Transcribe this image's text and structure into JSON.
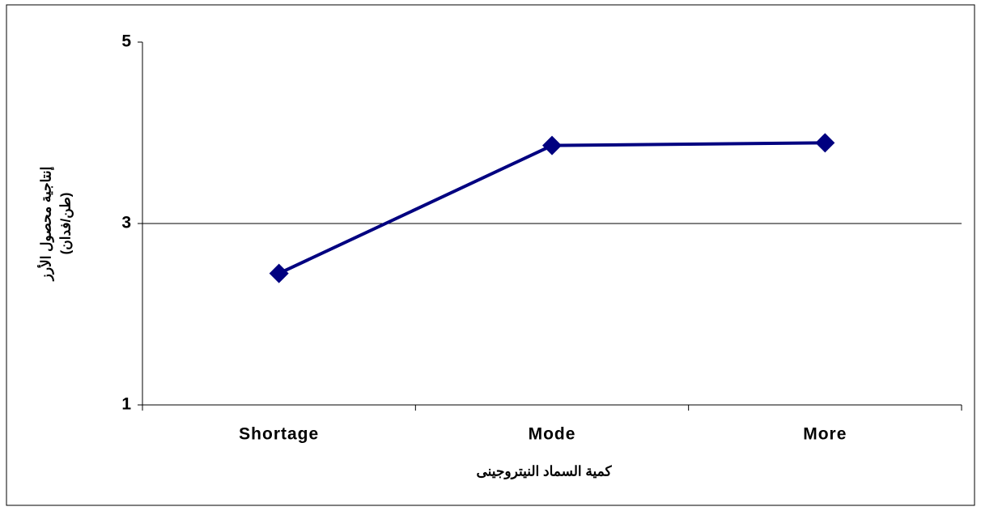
{
  "chart_data": {
    "type": "line",
    "x_label": "كمية السماد النيتروجينى",
    "y_label": [
      "إنتاجية محصول الأرز",
      "(طن/فدان)"
    ],
    "categories": [
      "Shortage",
      "Mode",
      "More"
    ],
    "series": [
      {
        "color": "#000080",
        "values": [
          2.45,
          3.86,
          3.89
        ]
      }
    ],
    "ylim": [
      1,
      5
    ],
    "yticks": [
      1,
      3,
      5
    ],
    "grid": true
  }
}
